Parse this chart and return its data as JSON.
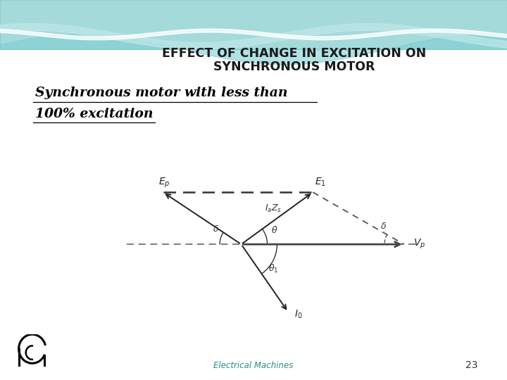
{
  "title_line1": "EFFECT OF CHANGE IN EXCITATION ON",
  "title_line2": "SYNCHRONOUS MOTOR",
  "subtitle_line1": "Synchronous motor with less than",
  "subtitle_line2": "100% excitation",
  "footer": "Electrical Machines",
  "page_number": "23",
  "bg_color": "#ffffff",
  "title_color": "#1a1a1a",
  "subtitle_color": "#000000",
  "diagram_color": "#333333",
  "dashed_color": "#555555",
  "footer_color": "#2e8b8b",
  "wave_colors": [
    "#5bbcbf",
    "#80cfd2",
    "#aadfe0",
    "#c8ecec"
  ],
  "O": [
    0.0,
    0.0
  ],
  "Vp": [
    1.0,
    0.0
  ],
  "Ep_new": [
    0.55,
    0.4
  ],
  "Ep_old": [
    -0.6,
    0.4
  ],
  "I0": [
    0.36,
    -0.52
  ]
}
